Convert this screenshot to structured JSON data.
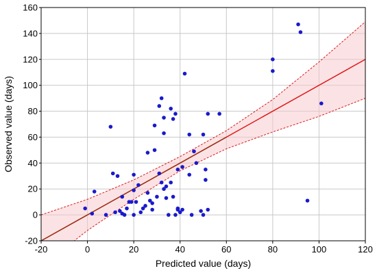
{
  "chart_data": {
    "type": "scatter",
    "xlabel": "Predicted value (days)",
    "ylabel": "Observed value (days)",
    "xlim": [
      -20,
      120
    ],
    "ylim": [
      -20,
      160
    ],
    "x_ticks": [
      "-20",
      "0",
      "20",
      "40",
      "60",
      "80",
      "100",
      "120"
    ],
    "y_ticks": [
      "-20",
      "0",
      "20",
      "40",
      "60",
      "80",
      "100",
      "120",
      "140",
      "160"
    ],
    "grid": true,
    "colors": {
      "points": "#1a1acc",
      "fit_line": "#e01818",
      "fit_line_dark": "#7a3a10",
      "band": "#e01818",
      "band_fill": "#f7c8cc",
      "grid": "#c8c8c8",
      "axes": "#000000"
    },
    "fit_line": {
      "slope": 1,
      "intercept": 0,
      "x_range": [
        -20,
        120
      ]
    },
    "confidence_band": {
      "upper": [
        [
          -20,
          0
        ],
        [
          0,
          12
        ],
        [
          20,
          27
        ],
        [
          40,
          45
        ],
        [
          60,
          65
        ],
        [
          80,
          89
        ],
        [
          100,
          118
        ],
        [
          120,
          149
        ]
      ],
      "lower": [
        [
          -20,
          -40
        ],
        [
          0,
          -12
        ],
        [
          20,
          12
        ],
        [
          40,
          34
        ],
        [
          60,
          51
        ],
        [
          80,
          64
        ],
        [
          100,
          76
        ],
        [
          120,
          90
        ]
      ]
    },
    "series": [
      {
        "points": [
          [
            -1,
            5
          ],
          [
            2,
            1
          ],
          [
            3,
            18
          ],
          [
            8,
            0
          ],
          [
            10,
            68
          ],
          [
            11,
            32
          ],
          [
            12,
            2
          ],
          [
            13,
            30
          ],
          [
            14,
            3
          ],
          [
            15,
            14
          ],
          [
            15,
            1
          ],
          [
            16,
            0
          ],
          [
            17,
            5
          ],
          [
            18,
            10
          ],
          [
            19,
            10
          ],
          [
            20,
            31
          ],
          [
            20,
            19
          ],
          [
            20,
            0
          ],
          [
            21,
            10
          ],
          [
            22,
            23
          ],
          [
            23,
            2
          ],
          [
            24,
            5
          ],
          [
            25,
            7
          ],
          [
            26,
            48
          ],
          [
            26,
            17
          ],
          [
            27,
            11
          ],
          [
            28,
            4
          ],
          [
            28,
            9
          ],
          [
            29,
            69
          ],
          [
            29,
            50
          ],
          [
            30,
            14
          ],
          [
            31,
            32
          ],
          [
            31,
            84
          ],
          [
            32,
            90
          ],
          [
            32,
            25
          ],
          [
            33,
            20
          ],
          [
            33,
            63
          ],
          [
            33,
            75
          ],
          [
            34,
            13
          ],
          [
            34,
            22
          ],
          [
            35,
            0
          ],
          [
            36,
            25
          ],
          [
            36,
            82
          ],
          [
            37,
            14
          ],
          [
            37,
            74
          ],
          [
            38,
            78
          ],
          [
            38,
            0
          ],
          [
            39,
            4
          ],
          [
            39,
            35
          ],
          [
            39,
            5
          ],
          [
            40,
            2
          ],
          [
            41,
            4
          ],
          [
            41,
            37
          ],
          [
            42,
            109
          ],
          [
            44,
            62
          ],
          [
            44,
            31
          ],
          [
            45,
            0
          ],
          [
            46,
            49
          ],
          [
            47,
            40
          ],
          [
            49,
            3
          ],
          [
            50,
            62
          ],
          [
            50,
            0
          ],
          [
            51,
            35
          ],
          [
            51,
            27
          ],
          [
            52,
            78
          ],
          [
            52,
            4
          ],
          [
            57,
            78
          ],
          [
            80,
            120
          ],
          [
            80,
            111
          ],
          [
            91,
            147
          ],
          [
            92,
            141
          ],
          [
            95,
            11
          ],
          [
            101,
            86
          ]
        ]
      }
    ]
  }
}
